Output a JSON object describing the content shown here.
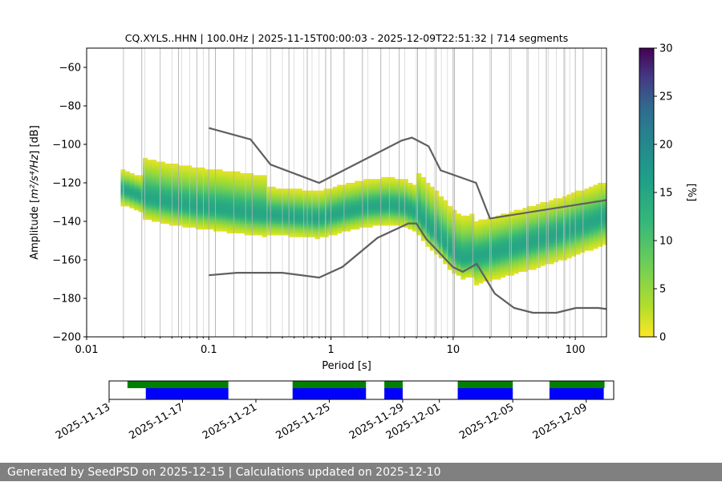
{
  "chart_data": {
    "type": "heatmap",
    "title": "CQ.XYLS..HHN | 100.0Hz | 2025-11-15T00:00:03 - 2025-12-09T22:51:32 | 714 segments",
    "xlabel": "Period [s]",
    "ylabel_prefix": "Amplitude [",
    "ylabel_math": "m²/s⁴/Hz",
    "ylabel_suffix": "] [dB]",
    "x_scale": "log",
    "xlim": [
      0.01,
      180
    ],
    "ylim": [
      -200,
      -50
    ],
    "x_ticks": [
      0.01,
      0.1,
      1,
      10,
      100
    ],
    "x_tick_labels": [
      "0.01",
      "0.1",
      "1",
      "10",
      "100"
    ],
    "y_ticks": [
      -200,
      -180,
      -160,
      -140,
      -120,
      -100,
      -80,
      -60
    ],
    "y_tick_labels": [
      "−200",
      "−180",
      "−160",
      "−140",
      "−120",
      "−100",
      "−80",
      "−60"
    ],
    "grid": "vertical lines at octave period bins",
    "colormap": "viridis (reversed)",
    "colorbar": {
      "label": "[%]",
      "range": [
        0,
        30
      ],
      "ticks": [
        0,
        5,
        10,
        15,
        20,
        25,
        30
      ],
      "tick_labels": [
        "0",
        "5",
        "10",
        "15",
        "20",
        "25",
        "30"
      ]
    },
    "mode_curve": {
      "periods": [
        0.02,
        0.03,
        0.05,
        0.08,
        0.12,
        0.2,
        0.3,
        0.5,
        0.8,
        1.2,
        2,
        3,
        4,
        5,
        6,
        8,
        10,
        12,
        15,
        20,
        30,
        50,
        80,
        120,
        180
      ],
      "db": [
        -124,
        -128,
        -131,
        -133,
        -134,
        -136,
        -137,
        -138,
        -139,
        -136,
        -133,
        -132,
        -133,
        -136,
        -142,
        -150,
        -157,
        -160,
        -159,
        -157,
        -154,
        -150,
        -146,
        -142,
        -138
      ]
    },
    "new_high_noise_model": {
      "periods": [
        0.1,
        0.22,
        0.32,
        0.8,
        3.8,
        4.6,
        6.3,
        7.9,
        15.4,
        20,
        354.8
      ],
      "db": [
        -91.5,
        -97.4,
        -110.5,
        -120,
        -98,
        -96.5,
        -101,
        -113.5,
        -120,
        -138.5,
        -126
      ]
    },
    "new_low_noise_model": {
      "periods": [
        0.1,
        0.17,
        0.4,
        0.8,
        1.24,
        2.4,
        4.3,
        5,
        6,
        10,
        12,
        15.6,
        21.9,
        31.6,
        45,
        70,
        101,
        154,
        328
      ],
      "db": [
        -168,
        -166.7,
        -166.7,
        -169.2,
        -163.7,
        -148.6,
        -141.1,
        -141.1,
        -149,
        -163.8,
        -166.2,
        -162.1,
        -177.5,
        -185,
        -187.5,
        -187.5,
        -185,
        -185,
        -187.5
      ]
    },
    "availability": {
      "date_tick_labels": [
        "2025-11-13",
        "2025-11-17",
        "2025-11-21",
        "2025-11-25",
        "2025-11-29",
        "2025-12-01",
        "2025-12-05",
        "2025-12-09"
      ],
      "date_ticks": [
        "2025-11-13",
        "2025-11-17",
        "2025-11-21",
        "2025-11-25",
        "2025-11-29",
        "2025-12-01",
        "2025-12-05",
        "2025-12-09"
      ],
      "xlim": [
        "2025-11-13T00:00",
        "2025-12-10T12:00"
      ],
      "data_coverage": [
        [
          "2025-11-14T00:00",
          "2025-11-19T12:00"
        ],
        [
          "2025-11-23T00:00",
          "2025-11-27T00:00"
        ],
        [
          "2025-11-28T00:00",
          "2025-11-29T00:00"
        ],
        [
          "2025-12-02T00:00",
          "2025-12-05T00:00"
        ],
        [
          "2025-12-07T00:00",
          "2025-12-10T00:00"
        ]
      ],
      "psd_coverage": [
        [
          "2025-11-15T00:00",
          "2025-11-19T12:00"
        ],
        [
          "2025-11-23T00:00",
          "2025-11-27T00:00"
        ],
        [
          "2025-11-28T00:00",
          "2025-11-29T00:00"
        ],
        [
          "2025-12-02T00:00",
          "2025-12-05T00:00"
        ],
        [
          "2025-12-07T00:00",
          "2025-12-09T23:00"
        ]
      ],
      "colors": {
        "data": "#008000",
        "psd": "#0000ff"
      }
    }
  },
  "footer": {
    "text": "Generated by SeedPSD on 2025-12-15 | Calculations updated on 2025-12-10"
  }
}
